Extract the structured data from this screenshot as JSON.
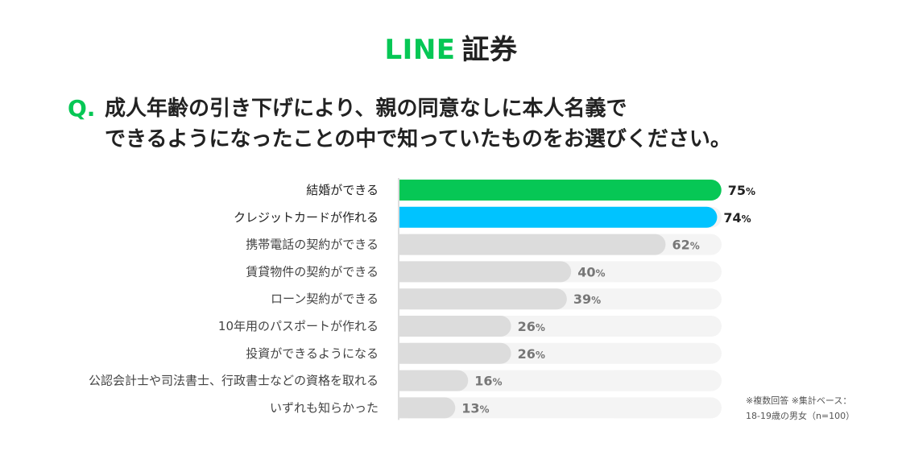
{
  "logo": {
    "line": "LINE",
    "sec": "証券"
  },
  "question": {
    "mark": "Q.",
    "line1": "成人年齢の引き下げにより、親の同意なしに本人名義で",
    "line2": "できるようになったことの中で知っていたものをお選びください。"
  },
  "colors": {
    "green": "#06c755",
    "blue": "#00c3ff",
    "grey_bar": "#dcdcdc",
    "track": "#f4f4f4"
  },
  "chart_data": {
    "type": "bar",
    "orientation": "horizontal",
    "categories": [
      "結婚ができる",
      "クレジットカードが作れる",
      "携帯電話の契約ができる",
      "賃貸物件の契約ができる",
      "ローン契約ができる",
      "10年用のパスポートが作れる",
      "投資ができるようになる",
      "公認会計士や司法書士、行政書士などの資格を取れる",
      "いずれも知らかった"
    ],
    "values": [
      75,
      74,
      62,
      40,
      39,
      26,
      26,
      16,
      13
    ],
    "unit": "%",
    "xlim": [
      0,
      100
    ],
    "highlight": [
      0,
      1
    ],
    "grid": false
  },
  "note": {
    "line1": "※複数回答 ※集計ベース：",
    "line2": "18-19歳の男女（n=100）"
  }
}
